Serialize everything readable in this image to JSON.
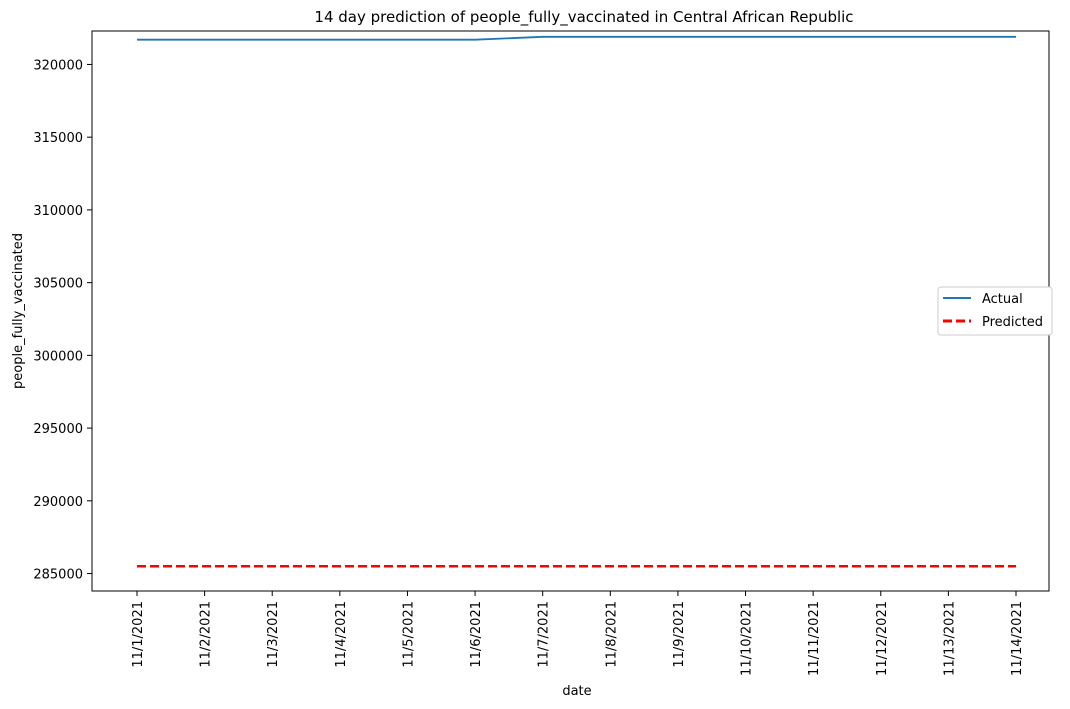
{
  "chart_data": {
    "type": "line",
    "title": "14 day prediction of people_fully_vaccinated in Central African Republic",
    "xlabel": "date",
    "ylabel": "people_fully_vaccinated",
    "categories": [
      "11/1/2021",
      "11/2/2021",
      "11/3/2021",
      "11/4/2021",
      "11/5/2021",
      "11/6/2021",
      "11/7/2021",
      "11/8/2021",
      "11/9/2021",
      "11/10/2021",
      "11/11/2021",
      "11/12/2021",
      "11/13/2021",
      "11/14/2021"
    ],
    "ylim": [
      283800,
      322300
    ],
    "yticks": [
      285000,
      290000,
      295000,
      300000,
      305000,
      310000,
      315000,
      320000
    ],
    "grid": false,
    "legend_position": "center-right",
    "series": [
      {
        "name": "Actual",
        "color": "#1f77b4",
        "style": "solid",
        "values": [
          321700,
          321700,
          321700,
          321700,
          321700,
          321700,
          321900,
          321900,
          321900,
          321900,
          321900,
          321900,
          321900,
          321900
        ]
      },
      {
        "name": "Predicted",
        "color": "#ff0000",
        "style": "dashed",
        "values": [
          285500,
          285500,
          285500,
          285500,
          285500,
          285500,
          285500,
          285500,
          285500,
          285500,
          285500,
          285500,
          285500,
          285500
        ]
      }
    ]
  }
}
